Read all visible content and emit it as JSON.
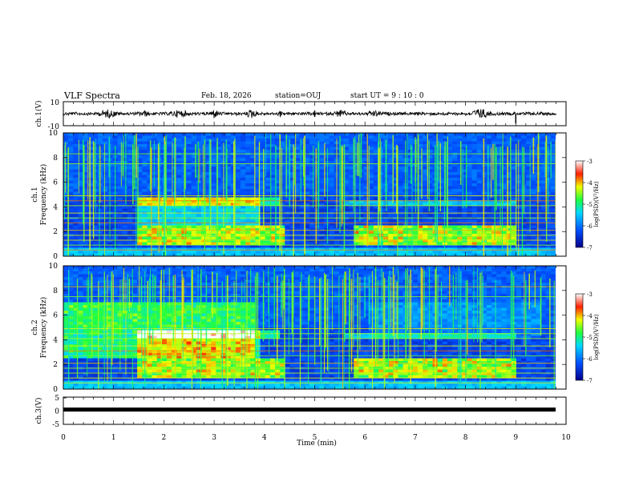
{
  "header": {
    "title": "VLF Spectra",
    "date": "Feb. 18, 2026",
    "station": "station=OUJ",
    "start_ut": "start  UT =  9 : 10 : 0"
  },
  "chart_data": [
    {
      "type": "line",
      "panel": "ch1-waveform",
      "ylabel": "ch.1(V)",
      "ylim": [
        -10,
        10
      ],
      "yticks": [
        10,
        -10
      ],
      "xlim": [
        0,
        10
      ],
      "series": [
        {
          "values": []
        }
      ],
      "note_values": "noisy waveform, amplitude ~ ±2 V with bursts near 0.9, 3.0, 3.8, 8.3 min"
    },
    {
      "type": "heatmap",
      "panel": "ch1-spectrogram",
      "ylabel": "ch.1\nFrequency  (kHz)",
      "ylim": [
        0,
        10
      ],
      "yticks": [
        0,
        2,
        4,
        6,
        8,
        10
      ],
      "xlim": [
        0,
        10
      ],
      "colorbar": {
        "label": "log(PSD)(V²/Hz)",
        "range": [
          -7,
          -3
        ],
        "ticks": [
          -3,
          -4,
          -5,
          -6,
          -7
        ]
      }
    },
    {
      "type": "heatmap",
      "panel": "ch2-spectrogram",
      "ylabel": "ch.2\nFrequency  (kHz)",
      "ylim": [
        0,
        10
      ],
      "yticks": [
        0,
        2,
        4,
        6,
        8,
        10
      ],
      "xlim": [
        0,
        10
      ],
      "colorbar": {
        "label": "log(PSD)(V²/Hz)",
        "range": [
          -7,
          -3
        ],
        "ticks": [
          -3,
          -4,
          -5,
          -6,
          -7
        ]
      }
    },
    {
      "type": "line",
      "panel": "ch3-waveform",
      "ylabel": "ch.3(V)",
      "ylim": [
        -5,
        5
      ],
      "yticks": [
        5,
        0,
        -5
      ],
      "xlim": [
        0,
        10
      ],
      "series": [
        {
          "x": [
            0,
            9.8
          ],
          "values": [
            -0.3,
            -0.3
          ]
        }
      ]
    }
  ],
  "xaxis": {
    "label": "Time  (min)",
    "ticks": [
      "0",
      "1",
      "2",
      "3",
      "4",
      "5",
      "6",
      "7",
      "8",
      "9",
      "10"
    ]
  },
  "labels": {
    "ch1v": "ch.1(V)",
    "ch1": "ch.1",
    "ch2": "ch.2",
    "freq": "Frequency  (kHz)",
    "ch3v": "ch.3(V)",
    "cbar": "log(PSD)(V²/Hz)"
  },
  "ticks": {
    "w1": [
      "10",
      "-10"
    ],
    "spec": [
      "10",
      "8",
      "6",
      "4",
      "2",
      "0"
    ],
    "w3": [
      "5",
      "0",
      "-5"
    ],
    "cbar": [
      "-3",
      "-4",
      "-5",
      "-6",
      "-7"
    ]
  }
}
